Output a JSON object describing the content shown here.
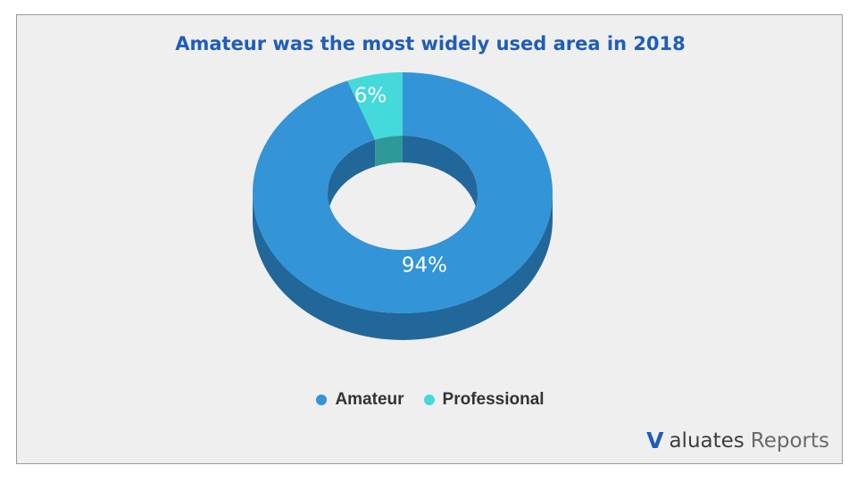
{
  "chart_data": {
    "type": "pie",
    "variant": "3d-donut",
    "title": "Amateur was the most widely used area in 2018",
    "categories": [
      "Amateur",
      "Professional"
    ],
    "values": [
      94,
      6
    ],
    "labels": [
      "94%",
      "6%"
    ],
    "colors": [
      "#3394d8",
      "#44d9db"
    ],
    "side_colors": [
      "#22679a",
      "#2f9898"
    ],
    "legend_position": "bottom-center"
  },
  "legend": {
    "items": [
      {
        "label": "Amateur",
        "color": "#3394d8"
      },
      {
        "label": "Professional",
        "color": "#44d9db"
      }
    ]
  },
  "brand": {
    "mark": "V",
    "name": "aluates",
    "suffix": "Reports",
    "icon": "valuates-logo-icon"
  }
}
